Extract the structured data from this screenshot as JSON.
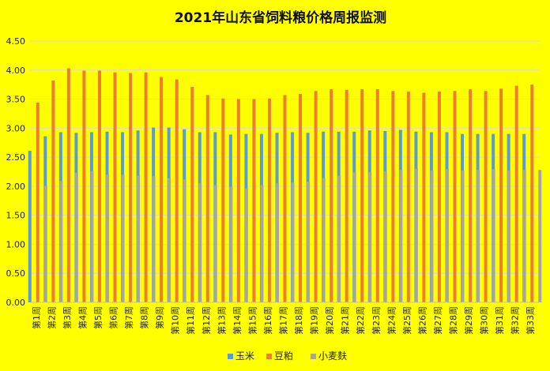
{
  "chart_data": {
    "type": "bar",
    "title": "2021年山东省饲料粮价格周报监测",
    "ylim": [
      0,
      4.5
    ],
    "yticks": [
      "0.00",
      "0.50",
      "1.00",
      "1.50",
      "2.00",
      "2.50",
      "3.00",
      "3.50",
      "4.00",
      "4.50"
    ],
    "grid": true,
    "legend_position": "bottom",
    "categories": [
      "第1周",
      "第2周",
      "第3周",
      "第4周",
      "第5周",
      "第6周",
      "第7周",
      "第8周",
      "第9周",
      "第10周",
      "第11周",
      "第12周",
      "第13周",
      "第14周",
      "第15周",
      "第16周",
      "第17周",
      "第18周",
      "第19周",
      "第20周",
      "第21周",
      "第22周",
      "第23周",
      "第24周",
      "第25周",
      "第26周",
      "第27周",
      "第28周",
      "第29周",
      "第30周",
      "第31周",
      "第32周",
      "第33周"
    ],
    "series": [
      {
        "name": "玉米",
        "color": "#5b9bd5",
        "values": [
          2.61,
          2.86,
          2.93,
          2.92,
          2.93,
          2.94,
          2.93,
          2.96,
          3.01,
          3.01,
          2.98,
          2.93,
          2.93,
          2.89,
          2.9,
          2.9,
          2.92,
          2.93,
          2.92,
          2.94,
          2.94,
          2.94,
          2.96,
          2.95,
          2.97,
          2.94,
          2.93,
          2.93,
          2.9,
          2.9,
          2.9,
          2.9,
          2.9
        ]
      },
      {
        "name": "豆粕",
        "color": "#ed7d31",
        "values": [
          3.44,
          3.82,
          4.03,
          3.99,
          3.99,
          3.96,
          3.95,
          3.96,
          3.88,
          3.84,
          3.71,
          3.57,
          3.51,
          3.5,
          3.5,
          3.51,
          3.57,
          3.59,
          3.64,
          3.67,
          3.66,
          3.67,
          3.67,
          3.64,
          3.63,
          3.61,
          3.63,
          3.64,
          3.67,
          3.64,
          3.68,
          3.73,
          3.75
        ]
      },
      {
        "name": "小麦麸",
        "color": "#a5a5a5",
        "values": [
          2.01,
          2.09,
          2.23,
          2.26,
          2.2,
          2.2,
          2.18,
          2.17,
          2.14,
          2.12,
          2.05,
          2.02,
          1.99,
          1.96,
          2.02,
          2.05,
          2.06,
          2.08,
          2.14,
          2.18,
          2.24,
          2.24,
          2.26,
          2.28,
          2.3,
          2.27,
          2.29,
          2.27,
          2.28,
          2.29,
          2.27,
          2.28,
          2.28
        ]
      }
    ]
  }
}
